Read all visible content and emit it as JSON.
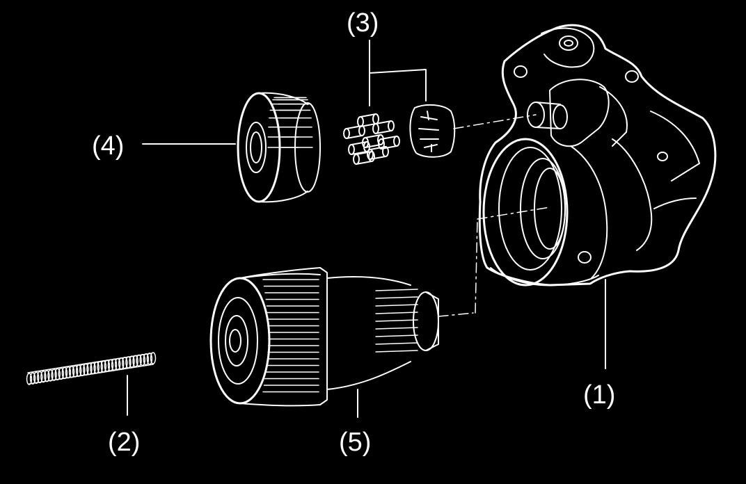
{
  "colors": {
    "background": "#000000",
    "line": "#ffffff"
  },
  "callouts": {
    "housing": "(1)",
    "spring": "(2)",
    "rollers": "(3)",
    "gear": "(4)",
    "clutch": "(5)"
  }
}
